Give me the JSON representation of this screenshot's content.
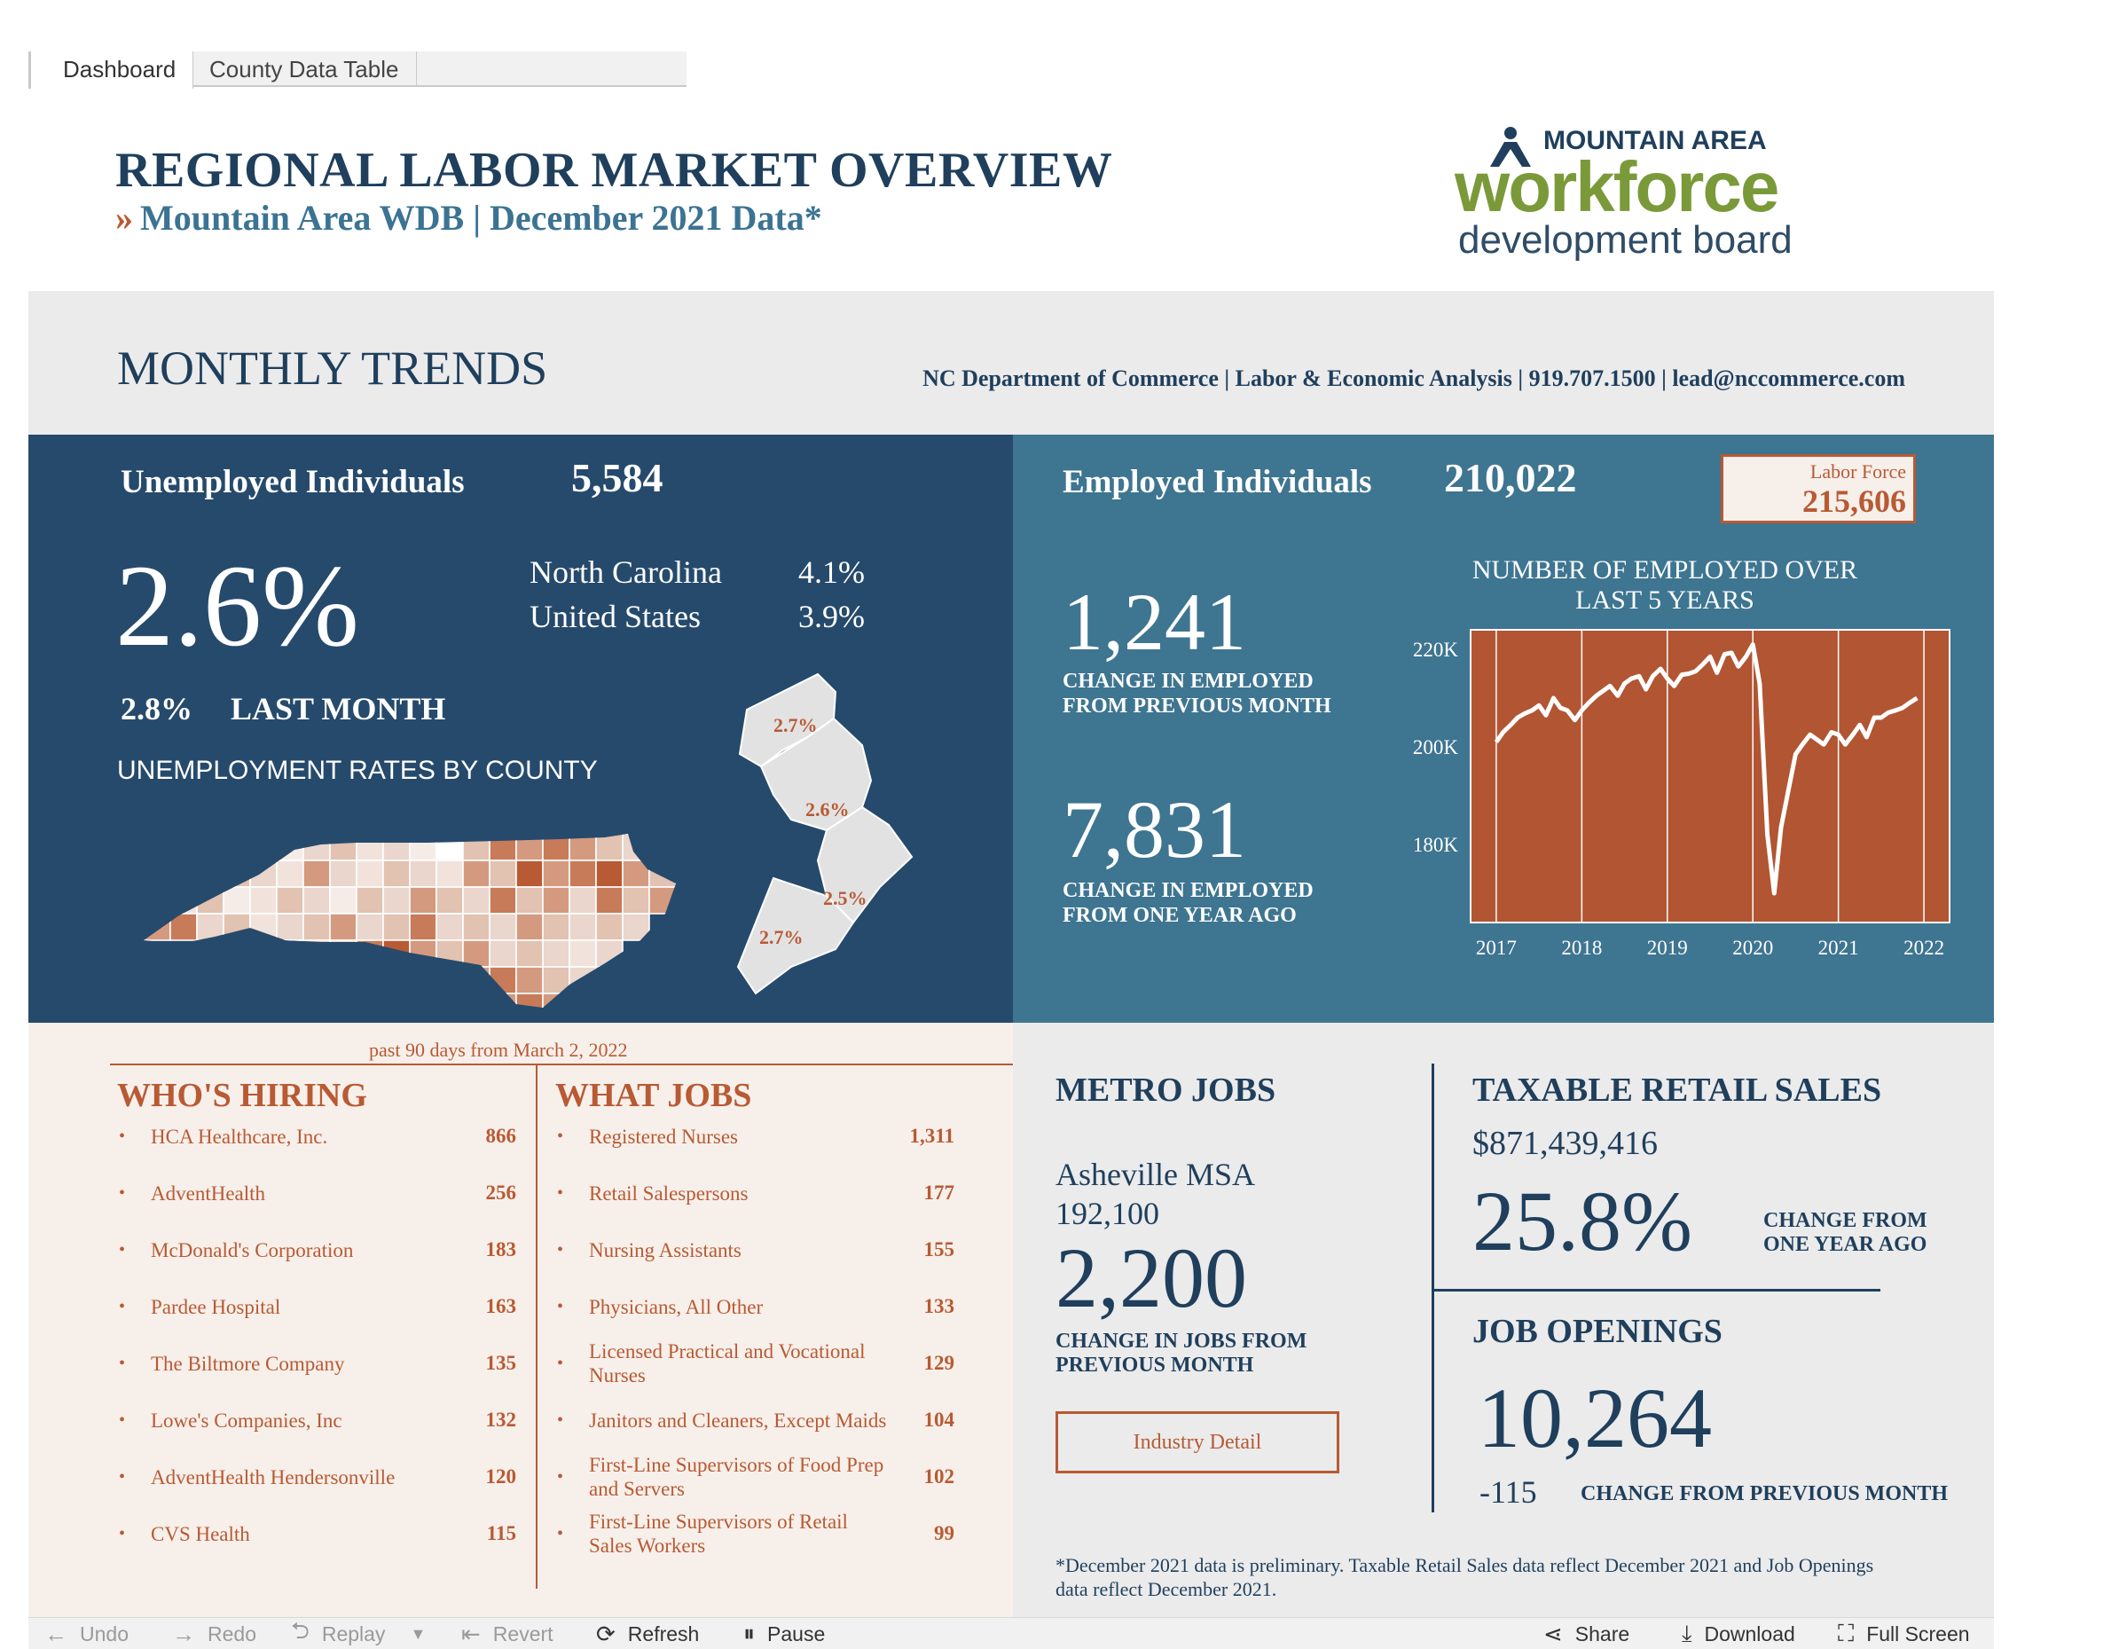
{
  "tabs": [
    "Dashboard",
    "County Data Table"
  ],
  "header": {
    "title": "REGIONAL LABOR MARKET OVERVIEW",
    "subtitle_chevron": "»",
    "subtitle": "Mountain Area WDB | December 2021 Data*"
  },
  "logo": {
    "top": "MOUNTAIN AREA",
    "mid": "workforce",
    "bottom": "development board"
  },
  "trends": {
    "title": "MONTHLY TRENDS",
    "contact": "NC Department of Commerce | Labor & Economic Analysis | 919.707.1500 | lead@nccommerce.com"
  },
  "unemployment": {
    "label": "Unemployed Individuals",
    "count": "5,584",
    "rate": "2.6%",
    "comparisons": [
      {
        "label": "North Carolina",
        "value": "4.1%"
      },
      {
        "label": "United States",
        "value": "3.9%"
      }
    ],
    "last_month_value": "2.8%",
    "last_month_label": "LAST MONTH",
    "county_map_label": "UNEMPLOYMENT RATES BY COUNTY",
    "region_rates": [
      "2.7%",
      "2.6%",
      "2.5%",
      "2.7%"
    ]
  },
  "employment": {
    "label": "Employed Individuals",
    "count": "210,022",
    "labor_force_label": "Labor Force",
    "labor_force_value": "215,606",
    "change_month_value": "1,241",
    "change_month_label": "CHANGE IN EMPLOYED FROM PREVIOUS MONTH",
    "change_year_value": "7,831",
    "change_year_label": "CHANGE IN EMPLOYED FROM ONE YEAR AGO",
    "chart_title": "NUMBER OF EMPLOYED OVER LAST 5 YEARS"
  },
  "chart_data": {
    "type": "line",
    "title": "NUMBER OF EMPLOYED OVER LAST 5 YEARS",
    "xlabel": "",
    "ylabel": "",
    "x_tick_labels": [
      "2017",
      "2018",
      "2019",
      "2020",
      "2021",
      "2022"
    ],
    "y_tick_labels": [
      "220K",
      "200K",
      "180K"
    ],
    "y_ticks": [
      220000,
      200000,
      180000
    ],
    "xlim": [
      2016.7,
      2022.3
    ],
    "ylim": [
      164000,
      224000
    ],
    "grid": "vertical",
    "x": [
      2017.0,
      2017.08,
      2017.17,
      2017.25,
      2017.33,
      2017.42,
      2017.5,
      2017.58,
      2017.67,
      2017.75,
      2017.83,
      2017.92,
      2018.0,
      2018.08,
      2018.17,
      2018.25,
      2018.33,
      2018.42,
      2018.5,
      2018.58,
      2018.67,
      2018.75,
      2018.83,
      2018.92,
      2019.0,
      2019.08,
      2019.17,
      2019.25,
      2019.33,
      2019.42,
      2019.5,
      2019.58,
      2019.67,
      2019.75,
      2019.83,
      2019.92,
      2020.0,
      2020.08,
      2020.17,
      2020.25,
      2020.33,
      2020.42,
      2020.5,
      2020.58,
      2020.67,
      2020.75,
      2020.83,
      2020.92,
      2021.0,
      2021.08,
      2021.17,
      2021.25,
      2021.33,
      2021.42,
      2021.5,
      2021.58,
      2021.67,
      2021.75,
      2021.83,
      2021.92
    ],
    "values": [
      201000,
      203000,
      204500,
      206000,
      206800,
      207500,
      208500,
      206500,
      210000,
      208000,
      207500,
      205500,
      207500,
      209000,
      210500,
      211500,
      212500,
      210500,
      213000,
      214000,
      214500,
      211800,
      214500,
      216000,
      214000,
      212500,
      214800,
      215000,
      215500,
      217000,
      218500,
      215200,
      219000,
      219300,
      216500,
      218500,
      221000,
      213000,
      182000,
      170000,
      183500,
      191500,
      198500,
      200500,
      202500,
      201500,
      200500,
      203000,
      202500,
      200500,
      202500,
      204500,
      202000,
      206000,
      206000,
      207000,
      207500,
      208000,
      209000,
      210000
    ],
    "line_color": "#ffffff",
    "plot_background": "#b25532"
  },
  "hiring": {
    "note": "past 90 days from March 2, 2022",
    "who_title": "WHO'S HIRING",
    "what_title": "WHAT JOBS",
    "bullet": "•",
    "who": [
      {
        "name": "HCA Healthcare, Inc.",
        "count": "866"
      },
      {
        "name": "AdventHealth",
        "count": "256"
      },
      {
        "name": "McDonald's Corporation",
        "count": "183"
      },
      {
        "name": "Pardee Hospital",
        "count": "163"
      },
      {
        "name": "The Biltmore Company",
        "count": "135"
      },
      {
        "name": "Lowe's Companies, Inc",
        "count": "132"
      },
      {
        "name": "AdventHealth Hendersonville",
        "count": "120"
      },
      {
        "name": "CVS Health",
        "count": "115"
      }
    ],
    "what": [
      {
        "name": "Registered Nurses",
        "count": "1,311"
      },
      {
        "name": "Retail Salespersons",
        "count": "177"
      },
      {
        "name": "Nursing Assistants",
        "count": "155"
      },
      {
        "name": "Physicians, All Other",
        "count": "133"
      },
      {
        "name": "Licensed Practical and Vocational Nurses",
        "count": "129"
      },
      {
        "name": "Janitors and Cleaners, Except Maids",
        "count": "104"
      },
      {
        "name": "First-Line Supervisors of Food Prep and Servers",
        "count": "102"
      },
      {
        "name": "First-Line Supervisors of Retail Sales Workers",
        "count": "99"
      }
    ]
  },
  "metro": {
    "title": "METRO JOBS",
    "area": "Asheville MSA",
    "jobs": "192,100",
    "change_value": "2,200",
    "change_label": "CHANGE IN JOBS FROM PREVIOUS MONTH",
    "industry_button": "Industry Detail"
  },
  "retail": {
    "title": "TAXABLE RETAIL SALES",
    "value": "$871,439,416",
    "pct": "25.8%",
    "pct_label_1": "CHANGE FROM",
    "pct_label_2": "ONE YEAR AGO"
  },
  "job_openings": {
    "title": "JOB OPENINGS",
    "value": "10,264",
    "change_value": "-115",
    "change_label": "CHANGE FROM PREVIOUS MONTH"
  },
  "footnote": "*December 2021 data is preliminary. Taxable Retail Sales data reflect December 2021 and Job Openings data reflect December 2021.",
  "toolbar": {
    "undo": "Undo",
    "redo": "Redo",
    "replay": "Replay",
    "revert": "Revert",
    "refresh": "Refresh",
    "pause": "Pause",
    "share": "Share",
    "download": "Download",
    "fullscreen": "Full Screen"
  },
  "colors": {
    "navy": "#1f3f5c",
    "dark_panel": "#264a6c",
    "teal_panel": "#3e7591",
    "rust": "#b85a33",
    "olive": "#7a9a3a"
  }
}
